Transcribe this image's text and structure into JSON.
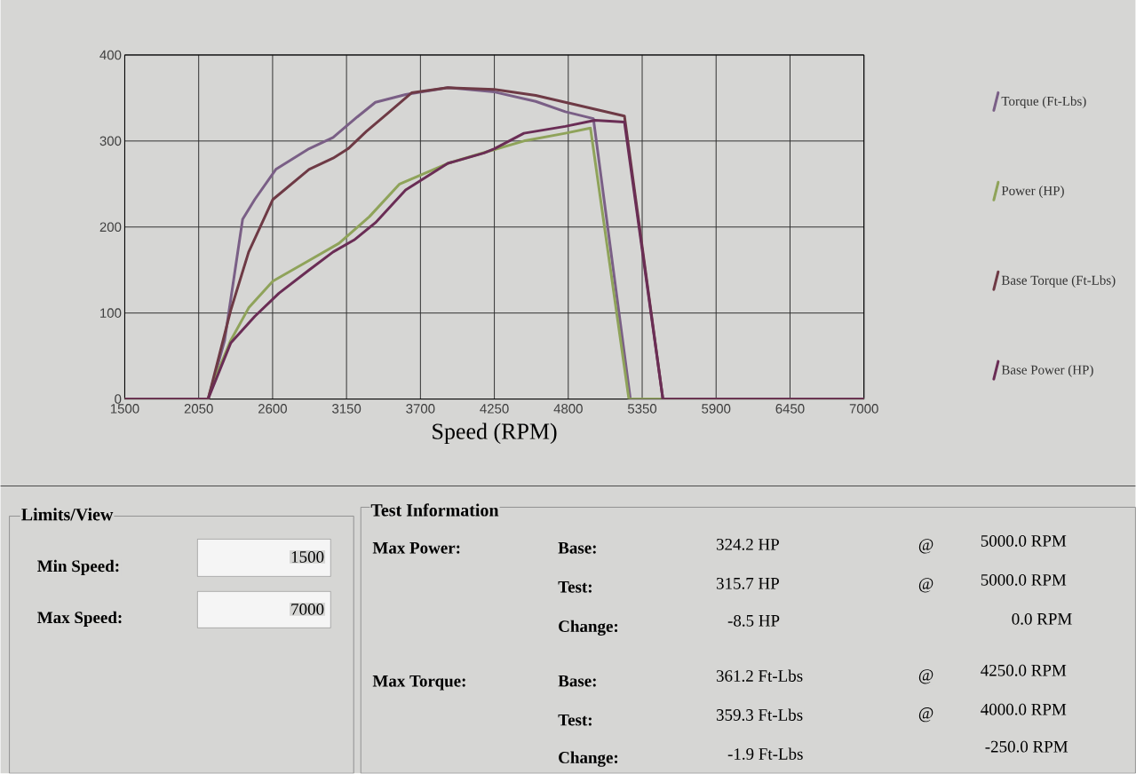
{
  "chart_data": {
    "type": "line",
    "xlabel": "Speed (RPM)",
    "xlim": [
      1500,
      7000
    ],
    "xticks": [
      1500,
      2050,
      2600,
      3150,
      3700,
      4250,
      4800,
      5350,
      5900,
      6450,
      7000
    ],
    "ylim": [
      0,
      400
    ],
    "yticks": [
      0,
      100,
      200,
      300,
      400
    ],
    "grid": true,
    "legend": "right",
    "marker": "none",
    "line_style": "solid",
    "series": [
      {
        "name": "Torque (Ft-Lbs)",
        "color": "#7a5f86",
        "x": [
          1500,
          2120,
          2243,
          2377,
          2467,
          2624,
          2871,
          3050,
          3230,
          3365,
          3590,
          3904,
          4250,
          4558,
          4778,
          4987,
          5262,
          7000
        ],
        "values": [
          0,
          0,
          68,
          209,
          232,
          267,
          291,
          304,
          328,
          345,
          354,
          362,
          357,
          346,
          334,
          326,
          0,
          0
        ]
      },
      {
        "name": "Power (HP)",
        "color": "#8fa35a",
        "x": [
          1500,
          2120,
          2153,
          2288,
          2422,
          2602,
          2871,
          3094,
          3320,
          3545,
          3904,
          4250,
          4470,
          4778,
          4965,
          5251,
          7000
        ],
        "values": [
          0,
          0,
          17,
          68,
          106,
          137,
          161,
          181,
          212,
          250,
          274,
          290,
          300,
          309,
          315,
          0,
          0
        ]
      },
      {
        "name": "Base Torque (Ft-Lbs)",
        "color": "#6e3a45",
        "x": [
          1500,
          2120,
          2288,
          2422,
          2602,
          2871,
          3050,
          3162,
          3297,
          3455,
          3634,
          3904,
          4250,
          4558,
          4778,
          5218,
          5504,
          7000
        ],
        "values": [
          0,
          0,
          103,
          171,
          232,
          267,
          280,
          291,
          311,
          332,
          356,
          362,
          360,
          353,
          345,
          329,
          0,
          0
        ]
      },
      {
        "name": "Base Power (HP)",
        "color": "#6a2d55",
        "x": [
          1500,
          2120,
          2288,
          2467,
          2647,
          2871,
          3050,
          3207,
          3365,
          3590,
          3904,
          4173,
          4250,
          4470,
          4778,
          4998,
          5218,
          5504,
          7000
        ],
        "values": [
          0,
          0,
          65,
          96,
          123,
          150,
          171,
          185,
          205,
          243,
          274,
          286,
          291,
          309,
          317,
          324,
          322,
          0,
          0
        ]
      }
    ],
    "annotations": [
      "Limits/View",
      "Min Speed:",
      "1500",
      "Max Speed:",
      "7000",
      "Test Information",
      "Max Power:",
      "Base:",
      "324.2 HP",
      "@",
      "5000.0 RPM",
      "Test:",
      "315.7 HP",
      "@",
      "5000.0 RPM",
      "Change:",
      "-8.5 HP",
      "0.0 RPM",
      "Max Torque:",
      "Base:",
      "361.2 Ft-Lbs",
      "@",
      "4250.0 RPM",
      "Test:",
      "359.3 Ft-Lbs",
      "@",
      "4000.0 RPM",
      "Change:",
      "-1.9 Ft-Lbs",
      "-250.0 RPM"
    ]
  }
}
